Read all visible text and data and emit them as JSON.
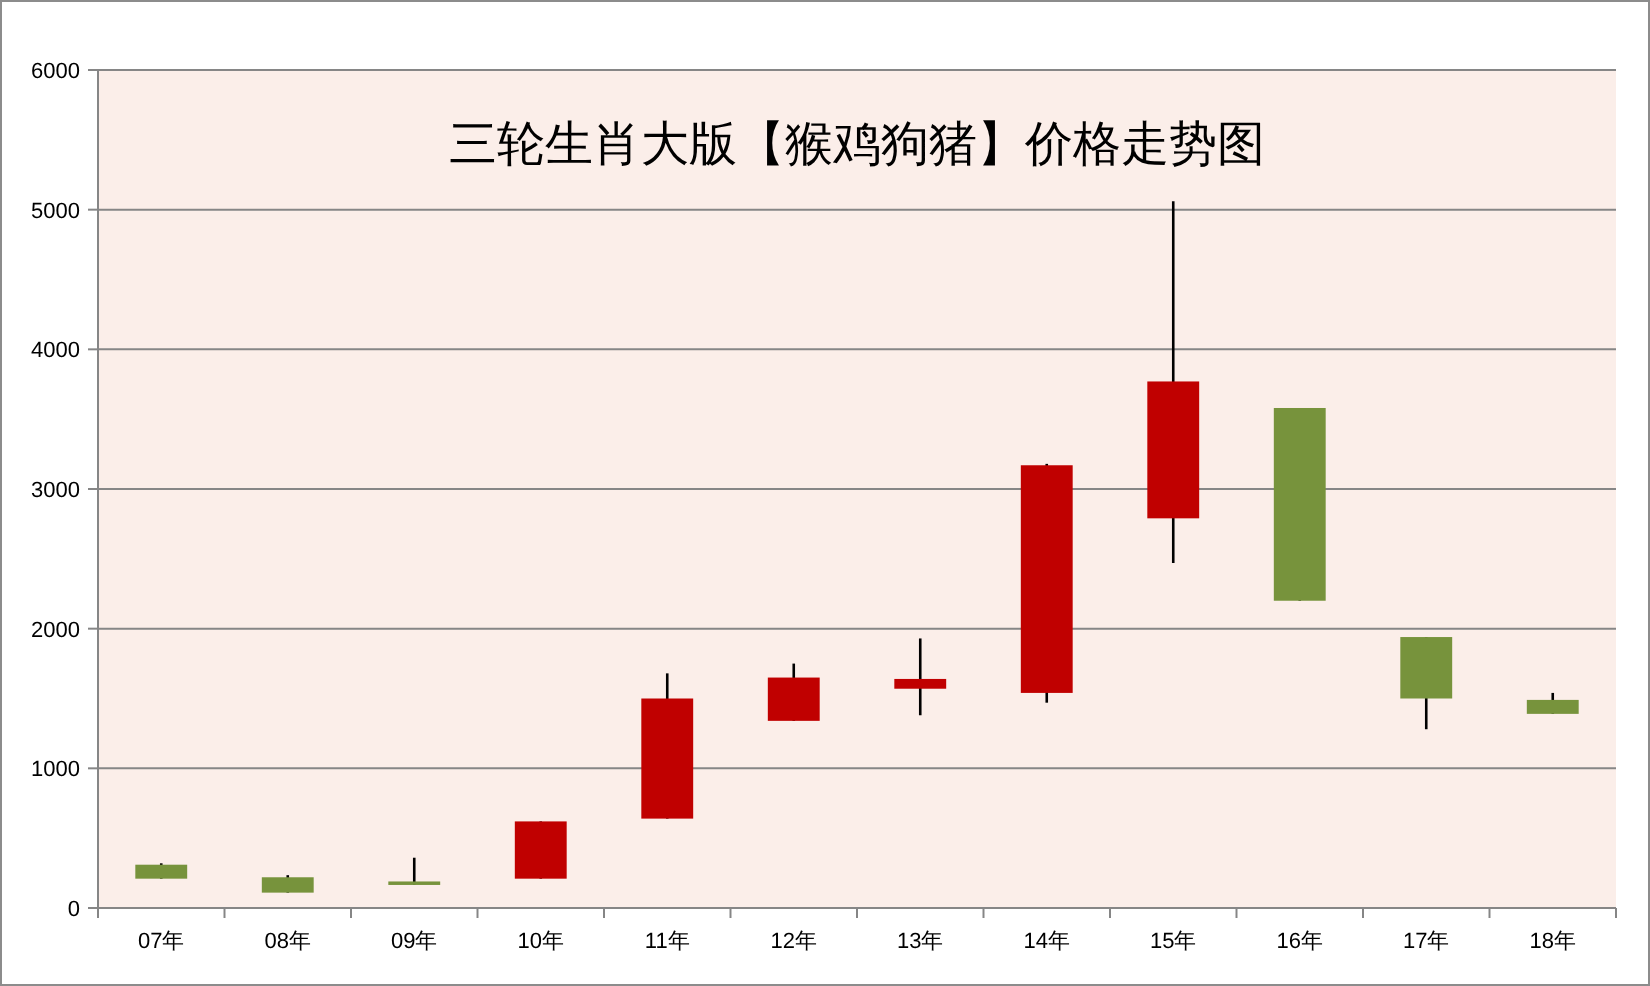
{
  "chart_data": {
    "type": "candlestick",
    "title": "三轮生肖大版【猴鸡狗猪】价格走势图",
    "categories": [
      "07年",
      "08年",
      "09年",
      "10年",
      "11年",
      "12年",
      "13年",
      "14年",
      "15年",
      "16年",
      "17年",
      "18年"
    ],
    "ohlc": [
      [
        310,
        320,
        210,
        210
      ],
      [
        220,
        235,
        110,
        110
      ],
      [
        190,
        360,
        165,
        165
      ],
      [
        210,
        620,
        210,
        620
      ],
      [
        640,
        1680,
        640,
        1500
      ],
      [
        1340,
        1750,
        1340,
        1650
      ],
      [
        1570,
        1930,
        1380,
        1640
      ],
      [
        1540,
        3180,
        1470,
        3170
      ],
      [
        2790,
        5060,
        2470,
        3770
      ],
      [
        3580,
        3580,
        2200,
        2200
      ],
      [
        1940,
        1940,
        1280,
        1500
      ],
      [
        1490,
        1540,
        1390,
        1390
      ]
    ],
    "colors": [
      "#77933c",
      "#77933c",
      "#77933c",
      "#c00000",
      "#c00000",
      "#c00000",
      "#c00000",
      "#c00000",
      "#c00000",
      "#77933c",
      "#77933c",
      "#77933c"
    ],
    "ylim": [
      0,
      6000
    ],
    "yticks": [
      0,
      1000,
      2000,
      3000,
      4000,
      5000,
      6000
    ],
    "grid": "y"
  }
}
